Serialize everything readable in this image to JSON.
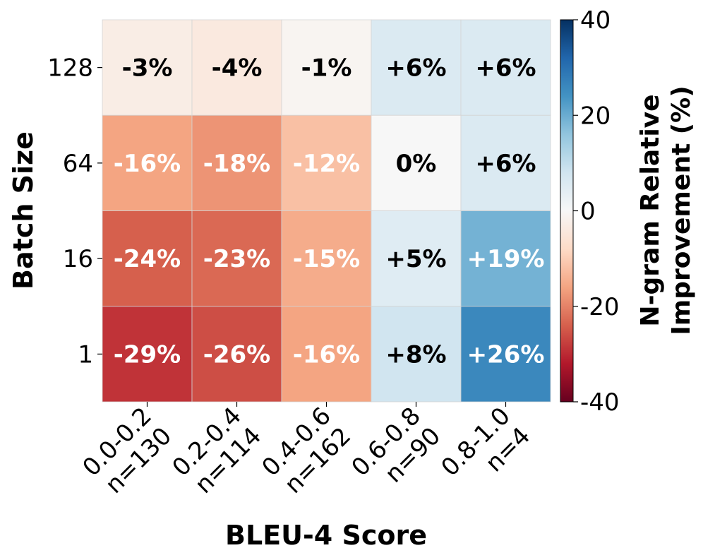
{
  "chart_data": {
    "type": "heatmap",
    "xlabel": "BLEU-4 Score",
    "ylabel": "Batch Size",
    "x_categories": [
      {
        "range": "0.0-0.2",
        "count": "n=130"
      },
      {
        "range": "0.2-0.4",
        "count": "n=114"
      },
      {
        "range": "0.4-0.6",
        "count": "n=162"
      },
      {
        "range": "0.6-0.8",
        "count": "n=90"
      },
      {
        "range": "0.8-1.0",
        "count": "n=4"
      }
    ],
    "y_categories": [
      "128",
      "64",
      "16",
      "1"
    ],
    "values": [
      [
        -3,
        -4,
        -1,
        6,
        6
      ],
      [
        -16,
        -18,
        -12,
        0,
        6
      ],
      [
        -24,
        -23,
        -15,
        5,
        19
      ],
      [
        -29,
        -26,
        -16,
        8,
        26
      ]
    ],
    "cell_labels": [
      [
        "-3%",
        "-4%",
        "-1%",
        "+6%",
        "+6%"
      ],
      [
        "-16%",
        "-18%",
        "-12%",
        "0%",
        "+6%"
      ],
      [
        "-24%",
        "-23%",
        "-15%",
        "+5%",
        "+19%"
      ],
      [
        "-29%",
        "-26%",
        "-16%",
        "+8%",
        "+26%"
      ]
    ],
    "colorbar": {
      "label_lines": [
        "N-gram Relative",
        "Improvement (%)"
      ],
      "range": [
        -40,
        40
      ],
      "ticks": [
        40,
        20,
        0,
        -20,
        -40
      ],
      "colormap": "RdBu"
    },
    "grid": false,
    "legend": "none"
  }
}
